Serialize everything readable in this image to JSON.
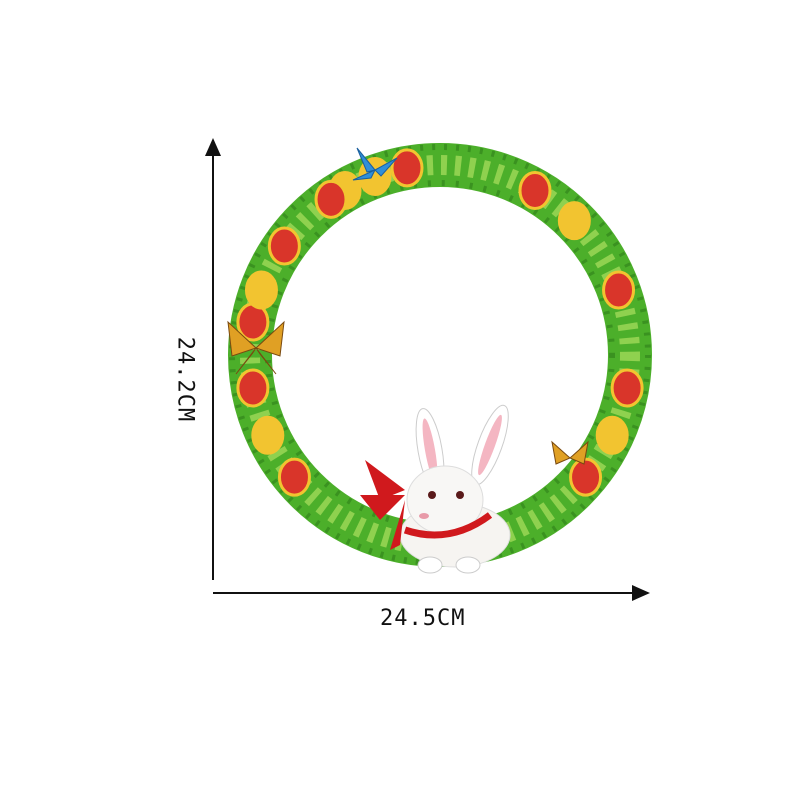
{
  "dimensions": {
    "height_label": "24.2CM",
    "width_label": "24.5CM"
  },
  "colors": {
    "leaves": "#4caf2a",
    "leaves_light": "#8fd14f",
    "egg_red": "#d9352a",
    "egg_yellow": "#f2c430",
    "ribbon": "#d0191d",
    "butterfly_blue": "#2f8fd8",
    "butterfly_orange": "#e0a024"
  }
}
